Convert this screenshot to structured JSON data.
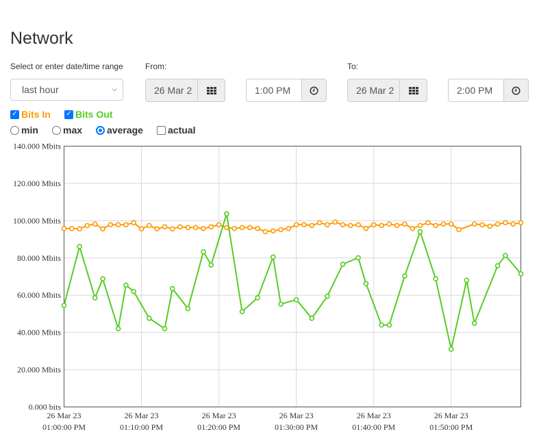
{
  "page": {
    "title": "Network"
  },
  "range": {
    "label": "Select or enter date/time range",
    "selected": "last hour"
  },
  "from": {
    "label": "From:",
    "date": "26 Mar 2",
    "time": "1:00 PM"
  },
  "to": {
    "label": "To:",
    "date": "26 Mar 2",
    "time": "2:00 PM"
  },
  "series_toggles": [
    {
      "label": "Bits In",
      "checked": true,
      "color": "#ff9900"
    },
    {
      "label": "Bits Out",
      "checked": true,
      "color": "#55cc22"
    }
  ],
  "modes": [
    {
      "label": "min",
      "type": "radio",
      "checked": false
    },
    {
      "label": "max",
      "type": "radio",
      "checked": false
    },
    {
      "label": "average",
      "type": "radio",
      "checked": true
    },
    {
      "label": "actual",
      "type": "checkbox",
      "checked": false
    }
  ],
  "chart_data": {
    "type": "line",
    "ylim": [
      0,
      140
    ],
    "y_ticks": [
      {
        "value": 0,
        "label": "0.000 bits"
      },
      {
        "value": 20,
        "label": "20.000 Mbits"
      },
      {
        "value": 40,
        "label": "40.000 Mbits"
      },
      {
        "value": 60,
        "label": "60.000 Mbits"
      },
      {
        "value": 80,
        "label": "80.000 Mbits"
      },
      {
        "value": 100,
        "label": "100.000 Mbits"
      },
      {
        "value": 120,
        "label": "120.000 Mbits"
      },
      {
        "value": 140,
        "label": "140.000 Mbits"
      }
    ],
    "xlim": [
      0,
      59
    ],
    "x_ticks": [
      {
        "value": 0,
        "date": "26 Mar 23",
        "time": "01:00:00 PM"
      },
      {
        "value": 10,
        "date": "26 Mar 23",
        "time": "01:10:00 PM"
      },
      {
        "value": 20,
        "date": "26 Mar 23",
        "time": "01:20:00 PM"
      },
      {
        "value": 30,
        "date": "26 Mar 23",
        "time": "01:30:00 PM"
      },
      {
        "value": 40,
        "date": "26 Mar 23",
        "time": "01:40:00 PM"
      },
      {
        "value": 50,
        "date": "26 Mar 23",
        "time": "01:50:00 PM"
      }
    ],
    "grid": true,
    "series": [
      {
        "name": "Bits In",
        "color": "#ff9900",
        "points": [
          [
            0,
            95.8
          ],
          [
            1,
            95.8
          ],
          [
            2,
            95.6
          ],
          [
            3,
            97.4
          ],
          [
            4,
            98.2
          ],
          [
            5,
            95.6
          ],
          [
            6,
            97.8
          ],
          [
            7,
            97.8
          ],
          [
            8,
            97.8
          ],
          [
            9,
            98.9
          ],
          [
            10,
            95.6
          ],
          [
            11,
            97.4
          ],
          [
            12,
            95.6
          ],
          [
            13,
            96.7
          ],
          [
            14,
            95.6
          ],
          [
            15,
            96.7
          ],
          [
            16,
            96.3
          ],
          [
            17,
            96.3
          ],
          [
            18,
            95.8
          ],
          [
            19,
            96.7
          ],
          [
            20,
            97.8
          ],
          [
            21,
            96.3
          ],
          [
            22,
            95.8
          ],
          [
            23,
            96.3
          ],
          [
            24,
            96.3
          ],
          [
            25,
            95.8
          ],
          [
            26,
            94.1
          ],
          [
            27,
            94.5
          ],
          [
            28,
            95.2
          ],
          [
            29,
            95.8
          ],
          [
            30,
            97.8
          ],
          [
            31,
            97.8
          ],
          [
            32,
            97.4
          ],
          [
            33,
            98.9
          ],
          [
            34,
            97.8
          ],
          [
            35,
            99.3
          ],
          [
            36,
            97.8
          ],
          [
            37,
            97.4
          ],
          [
            38,
            97.8
          ],
          [
            39,
            95.8
          ],
          [
            40,
            97.8
          ],
          [
            41,
            97.4
          ],
          [
            42,
            98.2
          ],
          [
            43,
            97.4
          ],
          [
            44,
            98.2
          ],
          [
            45,
            95.8
          ],
          [
            46,
            97.4
          ],
          [
            47,
            98.9
          ],
          [
            48,
            97.4
          ],
          [
            49,
            98.2
          ],
          [
            50,
            98.2
          ],
          [
            51,
            95.2
          ],
          [
            53,
            98.2
          ],
          [
            54,
            97.8
          ],
          [
            55,
            97.0
          ],
          [
            56,
            98.2
          ],
          [
            57,
            98.9
          ],
          [
            58,
            98.2
          ],
          [
            59,
            98.9
          ]
        ]
      },
      {
        "name": "Bits Out",
        "color": "#55cc22",
        "points": [
          [
            0,
            54.5
          ],
          [
            2,
            86.1
          ],
          [
            4,
            58.6
          ],
          [
            5,
            68.8
          ],
          [
            7,
            42.0
          ],
          [
            8,
            65.4
          ],
          [
            9,
            62.0
          ],
          [
            11,
            47.6
          ],
          [
            13,
            42.0
          ],
          [
            14,
            63.5
          ],
          [
            16,
            52.8
          ],
          [
            18,
            83.3
          ],
          [
            19,
            76.2
          ],
          [
            21,
            103.7
          ],
          [
            23,
            51.2
          ],
          [
            25,
            58.6
          ],
          [
            27,
            80.5
          ],
          [
            28,
            55.2
          ],
          [
            30,
            57.6
          ],
          [
            32,
            47.6
          ],
          [
            34,
            59.4
          ],
          [
            36,
            76.6
          ],
          [
            38,
            80.1
          ],
          [
            39,
            66.2
          ],
          [
            41,
            44.0
          ],
          [
            42,
            44.0
          ],
          [
            44,
            70.3
          ],
          [
            46,
            94.1
          ],
          [
            48,
            68.8
          ],
          [
            50,
            31.0
          ],
          [
            52,
            68.0
          ],
          [
            53,
            44.9
          ],
          [
            56,
            75.8
          ],
          [
            57,
            81.3
          ],
          [
            59,
            71.5
          ]
        ]
      }
    ]
  }
}
